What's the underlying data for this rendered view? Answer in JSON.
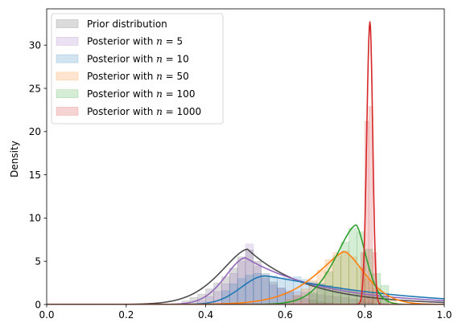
{
  "chart_data": {
    "type": "area",
    "ylabel": "Density",
    "xlim": [
      0,
      1
    ],
    "ylim": [
      0,
      34.2
    ],
    "x_ticks": [
      "0.0",
      "0.2",
      "0.4",
      "0.6",
      "0.8",
      "1.0"
    ],
    "y_ticks": [
      "0",
      "5",
      "10",
      "15",
      "20",
      "25",
      "30"
    ],
    "x_tick_values": [
      0,
      0.2,
      0.4,
      0.6,
      0.8,
      1.0
    ],
    "y_tick_values": [
      0,
      5,
      10,
      15,
      20,
      25,
      30
    ],
    "legend_placement": "upper-left",
    "series": [
      {
        "name": "Prior distribution",
        "color": "#4d4d4d",
        "curve": {
          "mode": 0.505,
          "peak": 6.4,
          "sl": 0.065,
          "sr": 0.075,
          "pl": 1.6,
          "pr": 1.0
        },
        "hist": {
          "edges": [
            0.34,
            0.36,
            0.38,
            0.4,
            0.42,
            0.44,
            0.46,
            0.48,
            0.5,
            0.52,
            0.54,
            0.56,
            0.58,
            0.6,
            0.62,
            0.64,
            0.66,
            0.68,
            0.7,
            0.72
          ],
          "heights": [
            0.4,
            0.8,
            1.2,
            1.8,
            2.5,
            3.2,
            4.2,
            5.5,
            6.3,
            5.0,
            3.6,
            2.6,
            1.9,
            1.4,
            1.0,
            0.7,
            0.5,
            0.3,
            0.2
          ]
        }
      },
      {
        "name": "Posterior with n = 5",
        "color": "#9467bd",
        "curve": {
          "mode": 0.5,
          "peak": 5.4,
          "sl": 0.05,
          "sr": 0.1,
          "pl": 1.8,
          "pr": 1.0
        },
        "hist": {
          "edges": [
            0.38,
            0.4,
            0.42,
            0.44,
            0.46,
            0.48,
            0.5,
            0.52,
            0.54,
            0.56,
            0.58,
            0.6,
            0.62,
            0.64,
            0.66,
            0.68,
            0.7,
            0.72,
            0.74,
            0.76,
            0.78,
            0.8,
            0.82
          ],
          "heights": [
            0.4,
            0.9,
            1.5,
            2.4,
            3.6,
            5.0,
            7.0,
            4.4,
            3.0,
            2.3,
            1.9,
            1.6,
            1.5,
            1.4,
            1.2,
            1.1,
            1.0,
            0.9,
            0.8,
            0.6,
            0.5,
            0.3
          ]
        }
      },
      {
        "name": "Posterior with n = 10",
        "color": "#1f77b4",
        "curve": {
          "mode": 0.55,
          "peak": 3.3,
          "sl": 0.06,
          "sr": 0.17,
          "pl": 2.0,
          "pr": 1.2
        },
        "hist": {
          "edges": [
            0.44,
            0.46,
            0.48,
            0.5,
            0.52,
            0.54,
            0.56,
            0.58,
            0.6,
            0.62,
            0.64,
            0.66,
            0.68,
            0.7,
            0.72,
            0.74,
            0.76,
            0.78,
            0.8,
            0.82,
            0.84,
            0.86
          ],
          "heights": [
            1.6,
            2.4,
            3.0,
            3.4,
            3.6,
            3.4,
            3.3,
            3.1,
            3.0,
            3.2,
            2.9,
            2.6,
            2.4,
            2.2,
            2.0,
            1.8,
            1.6,
            1.4,
            1.2,
            1.0,
            0.9
          ]
        }
      },
      {
        "name": "Posterior with n = 50",
        "color": "#ff7f0e",
        "curve": {
          "mode": 0.748,
          "peak": 6.1,
          "sl": 0.065,
          "sr": 0.05,
          "pl": 1.4,
          "pr": 1.6
        },
        "hist": {
          "edges": [
            0.6,
            0.62,
            0.64,
            0.66,
            0.68,
            0.7,
            0.72,
            0.74,
            0.76,
            0.78,
            0.8,
            0.82,
            0.84,
            0.86,
            0.88
          ],
          "heights": [
            0.6,
            1.1,
            1.8,
            2.8,
            4.0,
            5.2,
            6.0,
            6.2,
            5.5,
            4.3,
            3.0,
            1.8,
            0.9,
            0.4
          ]
        }
      },
      {
        "name": "Posterior with n = 100",
        "color": "#2ca02c",
        "curve": {
          "mode": 0.778,
          "peak": 9.2,
          "sl": 0.05,
          "sr": 0.025,
          "pl": 1.6,
          "pr": 1.6
        },
        "hist": {
          "edges": [
            0.66,
            0.68,
            0.7,
            0.72,
            0.74,
            0.76,
            0.78,
            0.8,
            0.82,
            0.84,
            0.86
          ],
          "heights": [
            1.4,
            2.4,
            3.8,
            5.6,
            7.2,
            8.8,
            8.4,
            6.4,
            3.6,
            2.2
          ]
        }
      },
      {
        "name": "Posterior with n = 1000",
        "color": "#d62728",
        "curve": {
          "mode": 0.813,
          "peak": 32.7,
          "sl": 0.008,
          "sr": 0.007,
          "pl": 2.0,
          "pr": 2.0
        },
        "hist": {
          "edges": [
            0.79,
            0.8,
            0.81,
            0.82,
            0.83
          ],
          "heights": [
            6.0,
            21.2,
            22.9,
            6.0
          ]
        }
      }
    ],
    "legend_labels": [
      {
        "prefix": "Prior distribution",
        "n": ""
      },
      {
        "prefix": "Posterior with ",
        "n": "5"
      },
      {
        "prefix": "Posterior with ",
        "n": "10"
      },
      {
        "prefix": "Posterior with ",
        "n": "50"
      },
      {
        "prefix": "Posterior with ",
        "n": "100"
      },
      {
        "prefix": "Posterior with ",
        "n": "1000"
      }
    ]
  }
}
